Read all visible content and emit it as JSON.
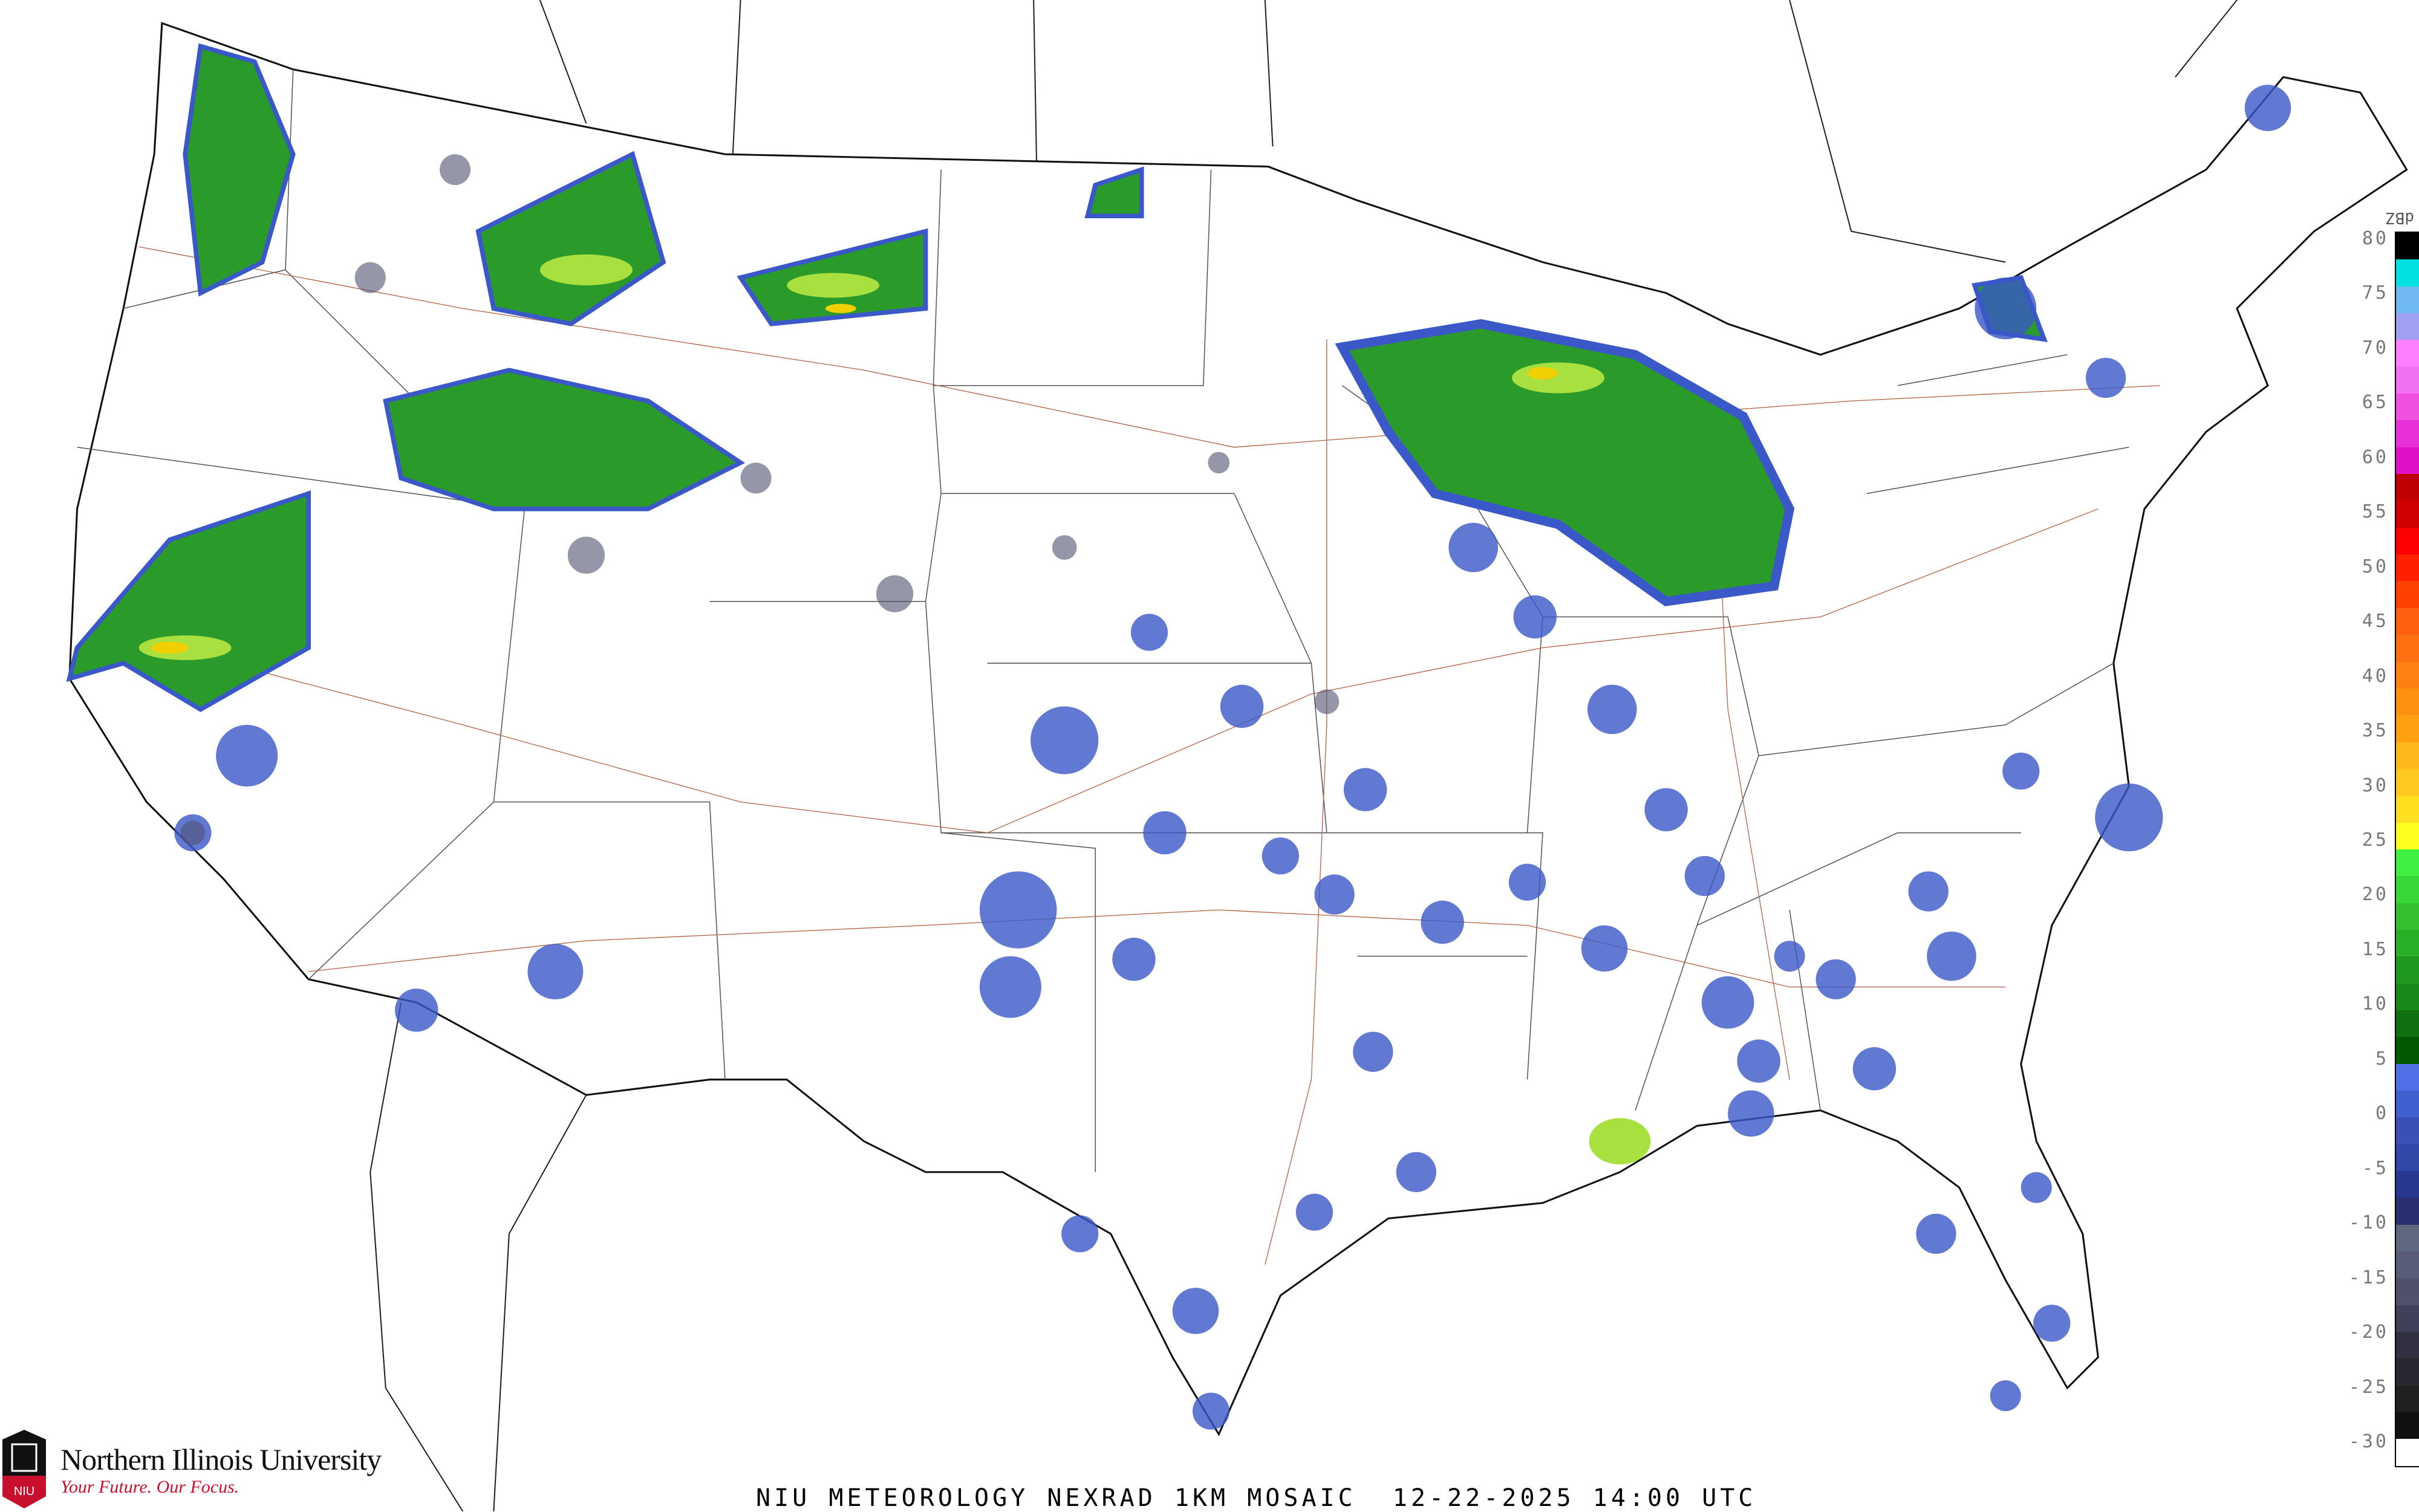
{
  "title": "NIU METEOROLOGY NEXRAD 1KM MOSAIC  12-22-2025 14:00 UTC",
  "branding": {
    "university": "Northern Illinois University",
    "tagline": "Your Future. Our Focus.",
    "seal_text": "NIU",
    "brand_color": "#c8102e"
  },
  "legend": {
    "unit": "dBZ",
    "ticks": [
      "80",
      "75",
      "70",
      "65",
      "60",
      "55",
      "50",
      "45",
      "40",
      "35",
      "30",
      "25",
      "20",
      "15",
      "10",
      "5",
      "0",
      "-5",
      "-10",
      "-15",
      "-20",
      "-25",
      "-30"
    ],
    "colors": [
      "#000000",
      "#00e0e0",
      "#70b8f0",
      "#a0a0f0",
      "#ff80ff",
      "#f070f0",
      "#f050e0",
      "#e830d8",
      "#e010c8",
      "#c00000",
      "#d00000",
      "#ff0000",
      "#ff2000",
      "#ff4000",
      "#ff6010",
      "#ff7010",
      "#ff8010",
      "#ff9010",
      "#ffa010",
      "#ffb818",
      "#ffc820",
      "#ffe020",
      "#ffff20",
      "#40f040",
      "#38d838",
      "#30c030",
      "#28b028",
      "#209820",
      "#188818",
      "#107010",
      "#005800",
      "#5070e8",
      "#4060d0",
      "#3850b8",
      "#3048a8",
      "#283890",
      "#283070",
      "#606880",
      "#585c78",
      "#505068",
      "#404058",
      "#303040",
      "#282830",
      "#202020",
      "#101010",
      "#ffffff"
    ]
  },
  "map": {
    "precip_colors": {
      "light": "#3a58c8",
      "moderate": "#28a028",
      "heavy": "#a0e040",
      "core": "#f0d000",
      "trace": "#505070"
    }
  }
}
